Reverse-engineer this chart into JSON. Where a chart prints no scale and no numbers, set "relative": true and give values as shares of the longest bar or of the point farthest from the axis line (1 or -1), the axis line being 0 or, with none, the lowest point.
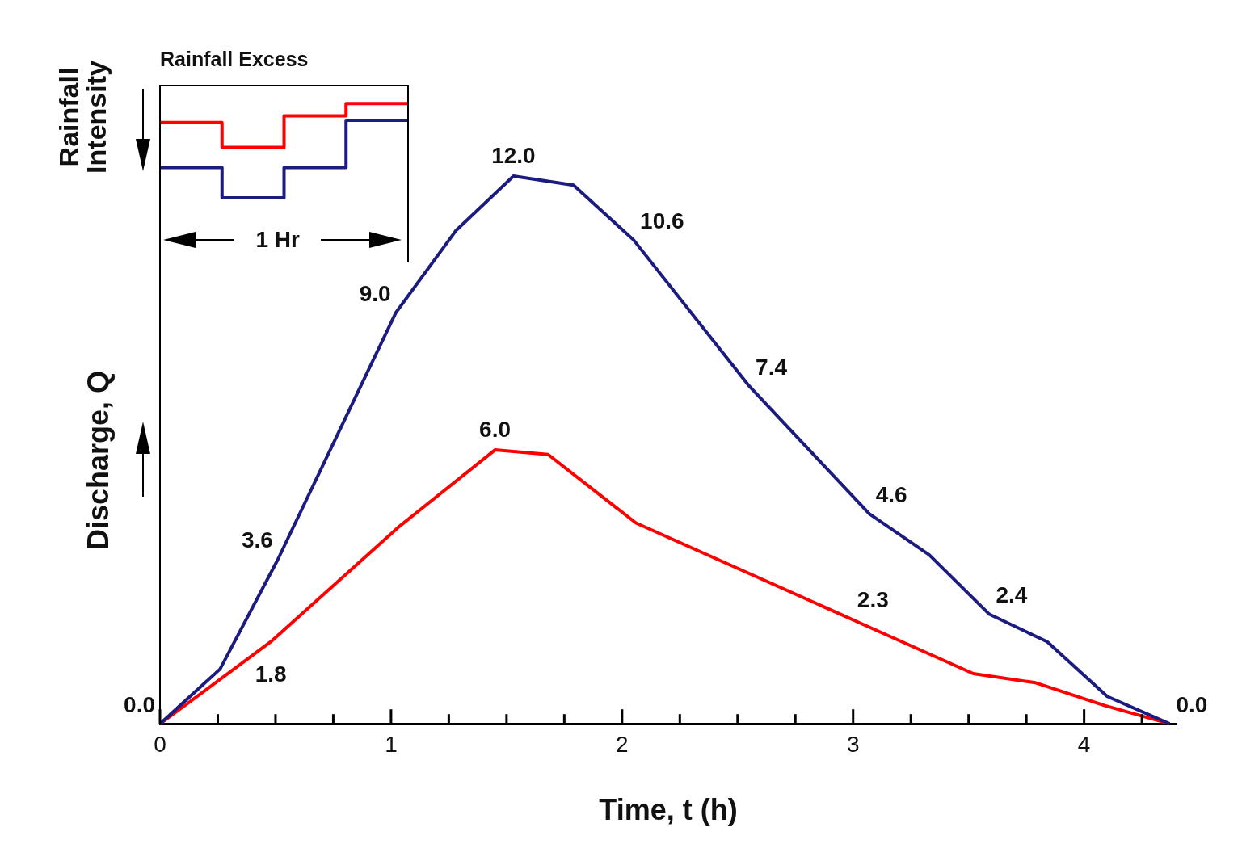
{
  "chart_data": [
    {
      "type": "line",
      "xlabel": "Time, t (h)",
      "ylabel": "Discharge, Q",
      "xlim": [
        0,
        4.4
      ],
      "xticks": [
        0,
        {
          "value": 0.25,
          "label": null
        },
        {
          "value": 0.5,
          "label": null
        },
        {
          "value": 0.75,
          "label": null
        },
        1,
        {
          "value": 1.25,
          "label": null
        },
        {
          "value": 1.5,
          "label": null
        },
        {
          "value": 1.75,
          "label": null
        },
        2,
        {
          "value": 2.25,
          "label": null
        },
        {
          "value": 2.5,
          "label": null
        },
        {
          "value": 2.75,
          "label": null
        },
        3,
        {
          "value": 3.25,
          "label": null
        },
        {
          "value": 3.5,
          "label": null
        },
        {
          "value": 3.75,
          "label": null
        },
        4,
        {
          "value": 4.25,
          "label": null
        }
      ],
      "tick_labels": "x",
      "grid": false,
      "legend": false,
      "series": [
        {
          "color": "#1c1c80",
          "x": [
            0,
            0.26,
            0.51,
            1.02,
            1.28,
            1.53,
            1.79,
            2.05,
            2.55,
            3.07,
            3.33,
            3.59,
            3.84,
            4.1,
            4.37
          ],
          "values": [
            0,
            1.2,
            3.6,
            9.0,
            10.8,
            12.0,
            11.8,
            10.6,
            7.4,
            4.6,
            3.7,
            2.4,
            1.8,
            0.6,
            0
          ],
          "value_labels": [
            "0.0",
            null,
            "3.6",
            "9.0",
            null,
            "12.0",
            null,
            "10.6",
            "7.4",
            "4.6",
            null,
            "2.4",
            null,
            null,
            "0.0"
          ]
        },
        {
          "color": "#ff0000",
          "x": [
            0,
            0.48,
            1.03,
            1.45,
            1.68,
            2.06,
            2.99,
            3.52,
            3.79,
            4.09,
            4.37
          ],
          "values": [
            0,
            1.8,
            4.3,
            6.0,
            5.9,
            4.4,
            2.3,
            1.1,
            0.9,
            0.4,
            0
          ],
          "value_labels": [
            null,
            "1.8",
            null,
            "6.0",
            null,
            null,
            "2.3",
            null,
            null,
            null,
            null
          ]
        }
      ]
    },
    {
      "type": "step",
      "title": "Rainfall Excess",
      "ylabel": "Rainfall Intensity",
      "categories": [
        null,
        null,
        null,
        null,
        null
      ],
      "relative": true,
      "tick_labels": false,
      "grid": false,
      "legend": false,
      "annotations": [
        "1 Hr"
      ],
      "series": [
        {
          "color": "#ff0000",
          "values": [
            -0.33,
            -0.55,
            -0.27,
            -0.16,
            -0.16
          ]
        },
        {
          "color": "#1c1c80",
          "values": [
            -0.73,
            -1,
            -0.73,
            -0.31,
            -0.31
          ]
        }
      ]
    }
  ]
}
